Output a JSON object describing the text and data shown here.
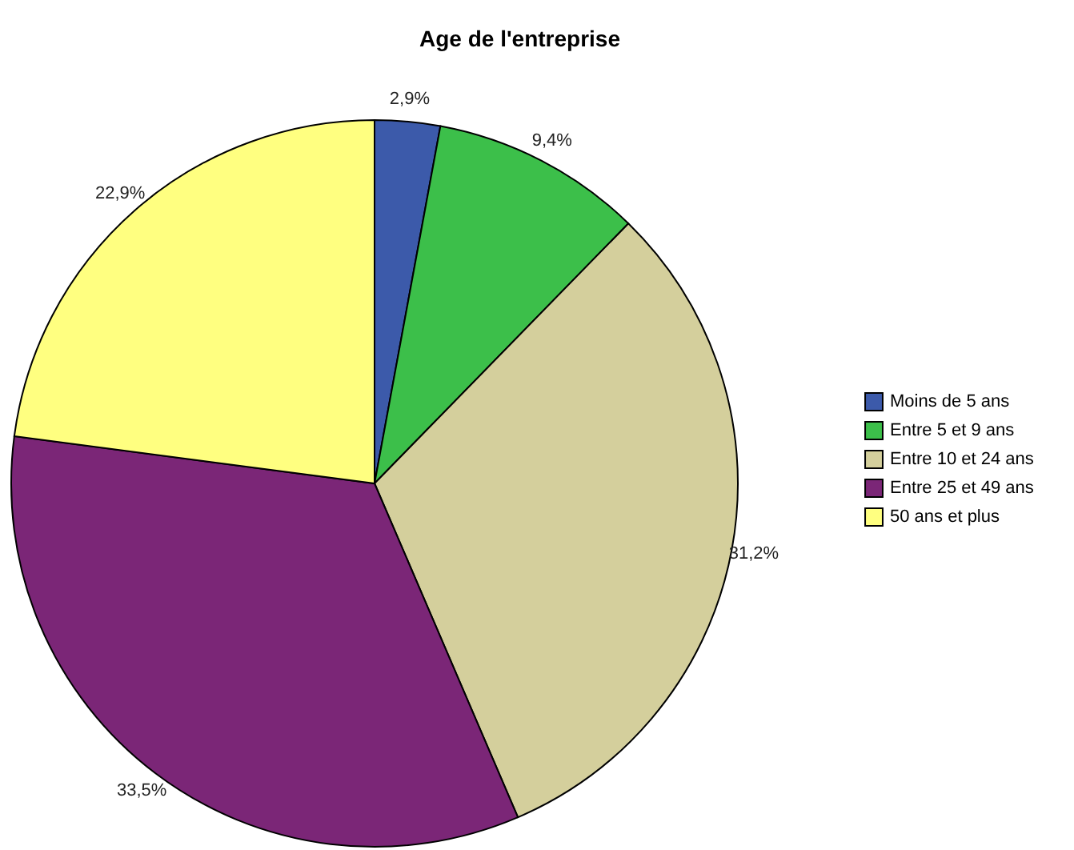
{
  "chart_data": {
    "type": "pie",
    "title": "Age de l'entreprise",
    "categories": [
      "Moins de 5 ans",
      "Entre 5 et 9 ans",
      "Entre 10 et 24 ans",
      "Entre 25 et 49 ans",
      "50 ans et plus"
    ],
    "values": [
      2.9,
      9.4,
      31.2,
      33.5,
      22.9
    ],
    "colors": [
      "#3c5aaa",
      "#3cbf4a",
      "#d4cf9c",
      "#7b2677",
      "#ffff80"
    ],
    "value_labels": [
      "2,9%",
      "9,4%",
      "31,2%",
      "33,5%",
      "22,9%"
    ],
    "legend": "right"
  }
}
